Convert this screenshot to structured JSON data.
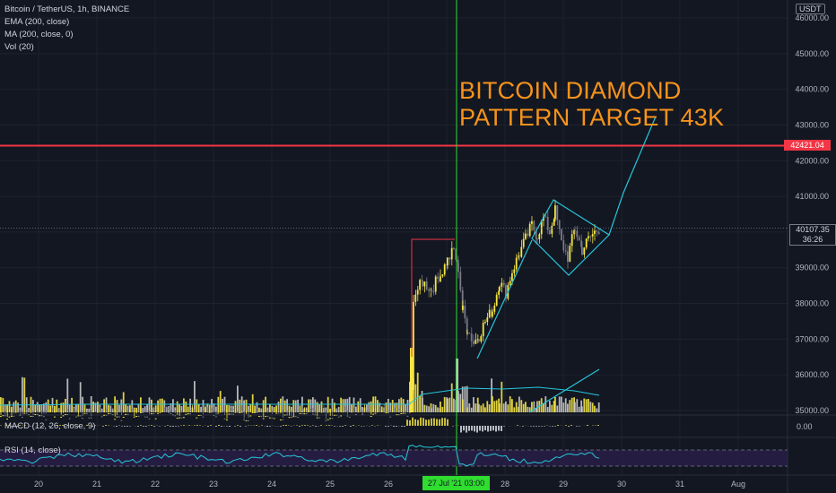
{
  "legend": {
    "title": "Bitcoin / TetherUS, 1h, BINANCE",
    "ema": "EMA (200, close)",
    "ma": "MA (200, close, 0)",
    "vol": "Vol (20)"
  },
  "headline": {
    "line1": "BITCOIN DIAMOND",
    "line2": "PATTERN TARGET 43K"
  },
  "indicators": {
    "macd_label": "MACD (12, 26, close, 9)",
    "macd_value": "0.00",
    "rsi_label": "RSI (14, close)"
  },
  "price_axis": {
    "currency": "USDT",
    "ticks": [
      "46000.00",
      "45000.00",
      "44000.00",
      "43000.00",
      "42000.00",
      "41000.00",
      "40000.00",
      "39000.00",
      "38000.00",
      "37000.00",
      "36000.00",
      "35000.00"
    ]
  },
  "tags": {
    "target_level": "42421.04",
    "current_price": "40107.35",
    "countdown": "36:26",
    "cursor_date": "27 Jul '21   03:00"
  },
  "time_axis": {
    "labels": [
      "20",
      "21",
      "22",
      "23",
      "24",
      "25",
      "26",
      "28",
      "29",
      "30",
      "31",
      "Aug"
    ]
  },
  "colors": {
    "background": "#131722",
    "up": "#f5e642",
    "down": "#787b86",
    "target_line": "#f23645",
    "trend_lines": "#26c6da",
    "headline": "#f7931a",
    "cursor": "#2fdc2f"
  },
  "chart_data": {
    "type": "line",
    "title": "Bitcoin / TetherUS, 1h, BINANCE",
    "ylabel": "USDT",
    "ylim": [
      35000,
      46000
    ],
    "x_ticks": [
      "20",
      "21",
      "22",
      "23",
      "24",
      "25",
      "26",
      "27",
      "28",
      "29",
      "30",
      "31",
      "Aug"
    ],
    "series": [
      {
        "x": [
          "20",
          "21",
          "22",
          "23",
          "24",
          "25",
          "26",
          "26.4",
          "26.5",
          "27",
          "27.3",
          "27.6",
          "28",
          "28.3",
          "28.6",
          "29",
          "29.3",
          "29.6"
        ],
        "values": [
          35000,
          35000,
          35000,
          35000,
          35000,
          35000,
          35000,
          35500,
          38200,
          39400,
          37400,
          36900,
          38000,
          39500,
          40200,
          40000,
          39600,
          40107
        ]
      }
    ],
    "horizontal_lines": [
      {
        "label": "42421.04",
        "value": 42421.04
      },
      {
        "label": "40107.35",
        "value": 40107.35
      }
    ],
    "annotations": [
      "BITCOIN DIAMOND PATTERN TARGET 43K"
    ]
  }
}
